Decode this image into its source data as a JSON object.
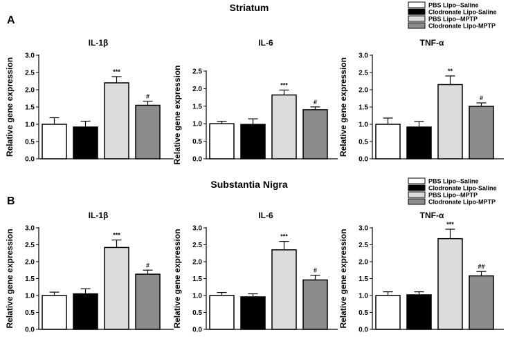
{
  "figure": {
    "panel_a_label": "A",
    "panel_b_label": "B",
    "section_a_title": "Striatum",
    "section_b_title": "Substantia Nigra"
  },
  "legend": [
    {
      "label": "PBS Lipo--Saline",
      "color": "#ffffff"
    },
    {
      "label": "Clodronate Lipo-Saline",
      "color": "#000000"
    },
    {
      "label": "PBS Lipo--MPTP",
      "color": "#dcdcdc"
    },
    {
      "label": "Clodronate Lipo-MPTP",
      "color": "#8c8c8c"
    }
  ],
  "colors": {
    "axis": "#000000",
    "bar_stroke": "#000000"
  },
  "chart_data": [
    {
      "type": "bar",
      "section": "Striatum",
      "title": "IL-1β",
      "ylabel": "Relative gene expression",
      "categories": [
        "PBS Lipo--Saline",
        "Clodronate Lipo-Saline",
        "PBS Lipo--MPTP",
        "Clodronate Lipo-MPTP"
      ],
      "values": [
        1.0,
        0.92,
        2.2,
        1.55
      ],
      "errors": [
        0.19,
        0.17,
        0.18,
        0.12
      ],
      "annotations": [
        "",
        "",
        "***",
        "#"
      ],
      "ylim": [
        0,
        3.0
      ],
      "yticks": [
        "0.0",
        "0.5",
        "1.0",
        "1.5",
        "2.0",
        "2.5",
        "3.0"
      ],
      "ystep": 0.5
    },
    {
      "type": "bar",
      "section": "Striatum",
      "title": "IL-6",
      "ylabel": "Relative gene expression",
      "categories": [
        "PBS Lipo--Saline",
        "Clodronate Lipo-Saline",
        "PBS Lipo--MPTP",
        "Clodronate Lipo-MPTP"
      ],
      "values": [
        1.0,
        0.98,
        1.82,
        1.4
      ],
      "errors": [
        0.07,
        0.16,
        0.14,
        0.08
      ],
      "annotations": [
        "",
        "",
        "***",
        "#"
      ],
      "ylim": [
        0,
        2.5
      ],
      "yticks": [
        "0.0",
        "0.5",
        "1.0",
        "1.5",
        "2.0",
        "2.5"
      ],
      "ystep": 0.5
    },
    {
      "type": "bar",
      "section": "Striatum",
      "title": "TNF-α",
      "ylabel": "Relative gene expression",
      "categories": [
        "PBS Lipo--Saline",
        "Clodronate Lipo-Saline",
        "PBS Lipo--MPTP",
        "Clodronate Lipo-MPTP"
      ],
      "values": [
        1.0,
        0.92,
        2.15,
        1.52
      ],
      "errors": [
        0.18,
        0.16,
        0.25,
        0.1
      ],
      "annotations": [
        "",
        "",
        "**",
        "#"
      ],
      "ylim": [
        0,
        3.0
      ],
      "yticks": [
        "0.0",
        "0.5",
        "1.0",
        "1.5",
        "2.0",
        "2.5",
        "3.0"
      ],
      "ystep": 0.5
    },
    {
      "type": "bar",
      "section": "Substantia Nigra",
      "title": "IL-1β",
      "ylabel": "Relative gene expression",
      "categories": [
        "PBS Lipo--Saline",
        "Clodronate Lipo-Saline",
        "PBS Lipo--MPTP",
        "Clodronate Lipo-MPTP"
      ],
      "values": [
        1.0,
        1.05,
        2.42,
        1.63
      ],
      "errors": [
        0.1,
        0.15,
        0.22,
        0.12
      ],
      "annotations": [
        "",
        "",
        "***",
        "#"
      ],
      "ylim": [
        0,
        3.0
      ],
      "yticks": [
        "0.0",
        "0.5",
        "1.0",
        "1.5",
        "2.0",
        "2.5",
        "3.0"
      ],
      "ystep": 0.5
    },
    {
      "type": "bar",
      "section": "Substantia Nigra",
      "title": "IL-6",
      "ylabel": "Relative gene expression",
      "categories": [
        "PBS Lipo--Saline",
        "Clodronate Lipo-Saline",
        "PBS Lipo--MPTP",
        "Clodronate Lipo-MPTP"
      ],
      "values": [
        1.0,
        0.96,
        2.35,
        1.46
      ],
      "errors": [
        0.09,
        0.09,
        0.25,
        0.14
      ],
      "annotations": [
        "",
        "",
        "***",
        "#"
      ],
      "ylim": [
        0,
        3.0
      ],
      "yticks": [
        "0.0",
        "0.5",
        "1.0",
        "1.5",
        "2.0",
        "2.5",
        "3.0"
      ],
      "ystep": 0.5
    },
    {
      "type": "bar",
      "section": "Substantia Nigra",
      "title": "TNF-α",
      "ylabel": "Relative gene expression",
      "categories": [
        "PBS Lipo--Saline",
        "Clodronate Lipo-Saline",
        "PBS Lipo--MPTP",
        "Clodronate Lipo-MPTP"
      ],
      "values": [
        1.0,
        1.02,
        2.68,
        1.58
      ],
      "errors": [
        0.11,
        0.09,
        0.28,
        0.13
      ],
      "annotations": [
        "",
        "",
        "***",
        "##"
      ],
      "ylim": [
        0,
        3.0
      ],
      "yticks": [
        "0.0",
        "0.5",
        "1.0",
        "1.5",
        "2.0",
        "2.5",
        "3.0"
      ],
      "ystep": 0.5
    }
  ]
}
